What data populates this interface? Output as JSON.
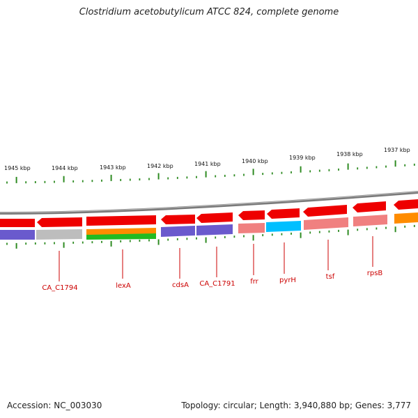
{
  "title": "Clostridium acetobutylicum ATCC 824, complete genome",
  "footer": {
    "accession": "Accession: NC_003030",
    "summary": "Topology: circular; Length: 3,940,880 bp; Genes: 3,777"
  },
  "colors": {
    "forward_cds": "#ee0000",
    "ticks": "#2e8b22",
    "labels": "#cc0000",
    "backbone": "#808080"
  },
  "scale": {
    "unit": "kbp",
    "ticks": [
      {
        "label": "1945 kbp"
      },
      {
        "label": "1944 kbp"
      },
      {
        "label": "1943 kbp"
      },
      {
        "label": "1942 kbp"
      },
      {
        "label": "1941 kbp"
      },
      {
        "label": "1940 kbp"
      },
      {
        "label": "1939 kbp"
      },
      {
        "label": "1938 kbp"
      },
      {
        "label": "1937 kbp"
      }
    ]
  },
  "gene_labels": [
    {
      "text": "CA_C1794"
    },
    {
      "text": "lexA"
    },
    {
      "text": "cdsA"
    },
    {
      "text": "CA_C1791"
    },
    {
      "text": "frr"
    },
    {
      "text": "pyrH"
    },
    {
      "text": "tsf"
    },
    {
      "text": "rpsB"
    }
  ]
}
